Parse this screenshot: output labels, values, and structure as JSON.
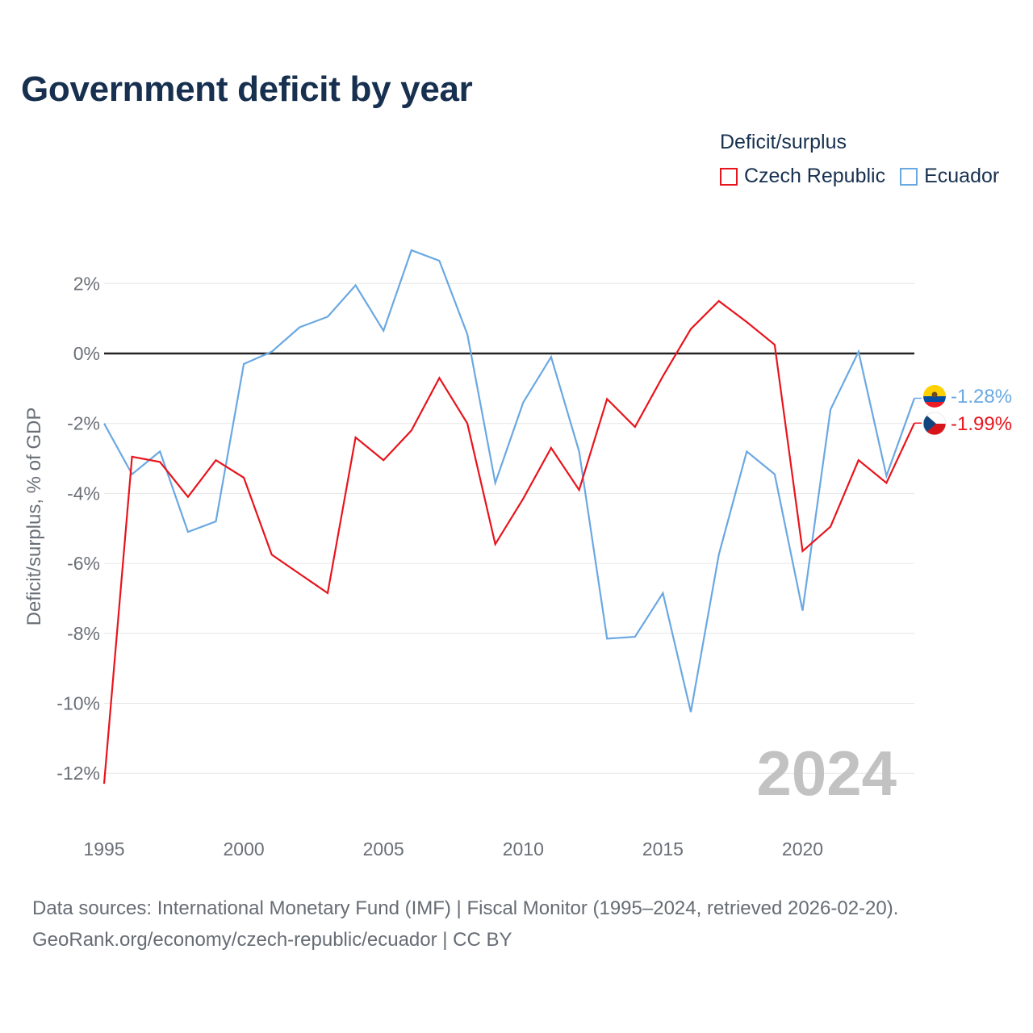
{
  "title": "Government deficit by year",
  "legend": {
    "title": "Deficit/surplus",
    "items": [
      {
        "label": "Czech Republic",
        "color": "#e8141c"
      },
      {
        "label": "Ecuador",
        "color": "#6aa8e2"
      }
    ]
  },
  "year_label": "2024",
  "footer": {
    "line1": "Data sources: International Monetary Fund (IMF) | Fiscal Monitor (1995–2024, retrieved 2026-02-20).",
    "line2": "GeoRank.org/economy/czech-republic/ecuador | CC BY"
  },
  "chart_data": {
    "type": "line",
    "title": "Government deficit by year",
    "xlabel": "",
    "ylabel": "Deficit/surplus, % of GDP",
    "x": [
      1995,
      1996,
      1997,
      1998,
      1999,
      2000,
      2001,
      2002,
      2003,
      2004,
      2005,
      2006,
      2007,
      2008,
      2009,
      2010,
      2011,
      2012,
      2013,
      2014,
      2015,
      2016,
      2017,
      2018,
      2019,
      2020,
      2021,
      2022,
      2023,
      2024
    ],
    "xlim": [
      1995,
      2024
    ],
    "ylim": [
      -12.5,
      3
    ],
    "xticks": [
      1995,
      2000,
      2005,
      2010,
      2015,
      2020
    ],
    "yticks": [
      2,
      0,
      -2,
      -4,
      -6,
      -8,
      -10,
      -12
    ],
    "ytick_labels": [
      "2%",
      "0%",
      "-2%",
      "-4%",
      "-6%",
      "-8%",
      "-10%",
      "-12%"
    ],
    "zero_line": 0,
    "series": [
      {
        "name": "Czech Republic",
        "color": "#e8141c",
        "end_label": "-1.99%",
        "values": [
          -12.3,
          -2.95,
          -3.1,
          -4.1,
          -3.05,
          -3.55,
          -5.75,
          -6.3,
          -6.85,
          -2.4,
          -3.05,
          -2.2,
          -0.7,
          -2.0,
          -5.45,
          -4.15,
          -2.7,
          -3.9,
          -1.3,
          -2.1,
          -0.65,
          0.7,
          1.5,
          0.9,
          0.25,
          -5.65,
          -4.95,
          -3.05,
          -3.7,
          -1.99
        ]
      },
      {
        "name": "Ecuador",
        "color": "#6aa8e2",
        "end_label": "-1.28%",
        "values": [
          -2.0,
          -3.45,
          -2.8,
          -5.1,
          -4.8,
          -0.3,
          0.05,
          0.75,
          1.05,
          1.95,
          0.65,
          2.95,
          2.65,
          0.55,
          -3.7,
          -1.4,
          -0.1,
          -2.8,
          -8.15,
          -8.1,
          -6.85,
          -10.25,
          -5.75,
          -2.8,
          -3.45,
          -7.35,
          -1.6,
          0.05,
          -3.5,
          -1.28
        ]
      }
    ]
  }
}
